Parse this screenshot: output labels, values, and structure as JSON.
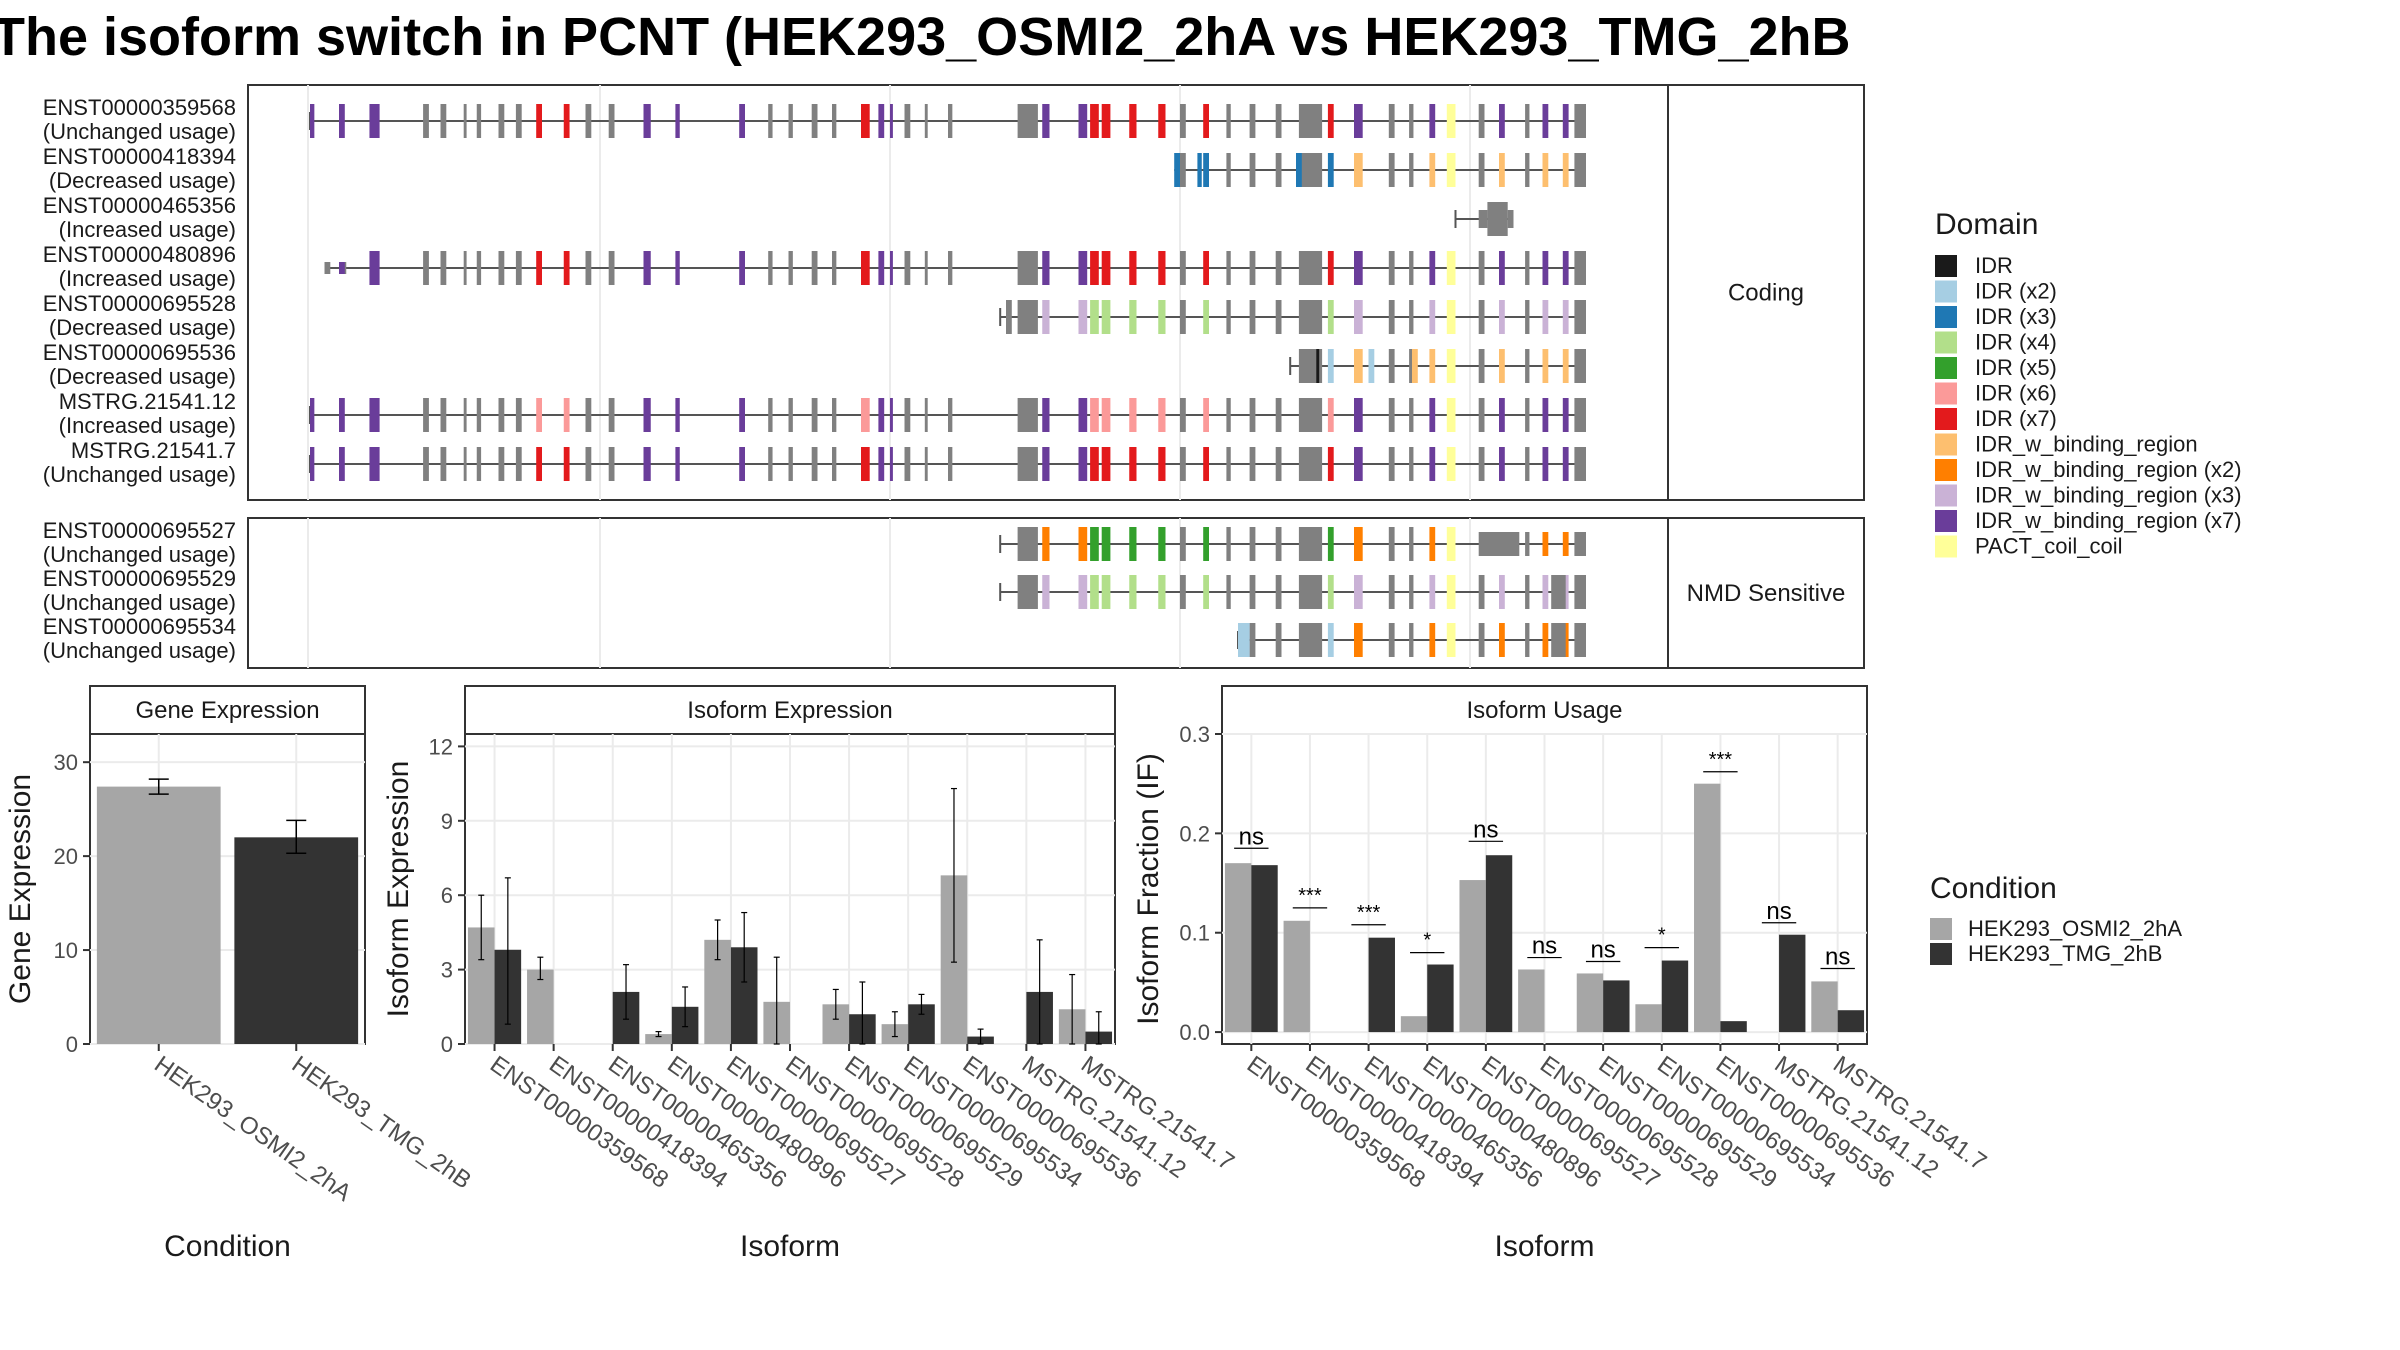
{
  "title": "The isoform switch in PCNT (HEK293_OSMI2_2hA vs HEK293_TMG_2hB",
  "colors": {
    "IDR": "#1a1a1a",
    "IDR (x2)": "#a6cee3",
    "IDR (x3)": "#1f78b4",
    "IDR (x4)": "#b2df8a",
    "IDR (x5)": "#33a02c",
    "IDR (x6)": "#fb9a99",
    "IDR (x7)": "#e31a1c",
    "IDR_w_binding_region": "#fdbf6f",
    "IDR_w_binding_region (x2)": "#ff7f00",
    "IDR_w_binding_region (x3)": "#cab2d6",
    "IDR_w_binding_region (x7)": "#6a3d9a",
    "PACT_coil_coil": "#ffff99",
    "exon": "#808080",
    "cond_A": "#a6a6a6",
    "cond_B": "#333333"
  },
  "structure": {
    "panels": [
      {
        "label": "Coding",
        "isoforms": [
          {
            "id": "ENST00000359568",
            "usage": "(Unchanged usage)"
          },
          {
            "id": "ENST00000418394",
            "usage": "(Decreased usage)"
          },
          {
            "id": "ENST00000465356",
            "usage": "(Increased usage)"
          },
          {
            "id": "ENST00000480896",
            "usage": "(Increased usage)"
          },
          {
            "id": "ENST00000695528",
            "usage": "(Decreased usage)"
          },
          {
            "id": "ENST00000695536",
            "usage": "(Decreased usage)"
          },
          {
            "id": "MSTRG.21541.12",
            "usage": "(Increased usage)"
          },
          {
            "id": "MSTRG.21541.7",
            "usage": "(Unchanged usage)"
          }
        ]
      },
      {
        "label": "NMD Sensitive",
        "isoforms": [
          {
            "id": "ENST00000695527",
            "usage": "(Unchanged usage)"
          },
          {
            "id": "ENST00000695529",
            "usage": "(Unchanged usage)"
          },
          {
            "id": "ENST00000695534",
            "usage": "(Unchanged usage)"
          }
        ]
      }
    ]
  },
  "legend_domain": {
    "title": "Domain",
    "items": [
      "IDR",
      "IDR (x2)",
      "IDR (x3)",
      "IDR (x4)",
      "IDR (x5)",
      "IDR (x6)",
      "IDR (x7)",
      "IDR_w_binding_region",
      "IDR_w_binding_region (x2)",
      "IDR_w_binding_region (x3)",
      "IDR_w_binding_region (x7)",
      "PACT_coil_coil"
    ]
  },
  "legend_condition": {
    "title": "Condition",
    "items": [
      "HEK293_OSMI2_2hA",
      "HEK293_TMG_2hB"
    ]
  },
  "chart_data": [
    {
      "type": "bar",
      "title": "Gene Expression",
      "xlabel": "Condition",
      "ylabel": "Gene Expression",
      "ylim": [
        0,
        33
      ],
      "yticks": [
        "0",
        "10",
        "20",
        "30"
      ],
      "categories": [
        "HEK293_OSMI2_2hA",
        "HEK293_TMG_2hB"
      ],
      "values": [
        27.4,
        22.0
      ],
      "error_low": [
        26.6,
        20.3
      ],
      "error_high": [
        28.2,
        23.8
      ]
    },
    {
      "type": "bar",
      "title": "Isoform Expression",
      "xlabel": "Isoform",
      "ylabel": "Isoform Expression",
      "ylim": [
        0,
        12.5
      ],
      "yticks": [
        "0",
        "3",
        "6",
        "9",
        "12"
      ],
      "categories": [
        "ENST00000359568",
        "ENST00000418394",
        "ENST00000465356",
        "ENST00000480896",
        "ENST00000695527",
        "ENST00000695528",
        "ENST00000695529",
        "ENST00000695534",
        "ENST00000695536",
        "MSTRG.21541.12",
        "MSTRG.21541.7"
      ],
      "series": [
        {
          "name": "HEK293_OSMI2_2hA",
          "values": [
            4.7,
            3.0,
            0.0,
            0.4,
            4.2,
            1.7,
            1.6,
            0.8,
            6.8,
            0.0,
            1.4
          ],
          "error_low": [
            3.4,
            2.6,
            0.0,
            0.3,
            3.4,
            0.0,
            1.0,
            0.3,
            3.3,
            0.0,
            0.0
          ],
          "error_high": [
            6.0,
            3.5,
            0.0,
            0.5,
            5.0,
            3.5,
            2.2,
            1.3,
            10.3,
            0.0,
            2.8
          ]
        },
        {
          "name": "HEK293_TMG_2hB",
          "values": [
            3.8,
            0.0,
            2.1,
            1.5,
            3.9,
            0.0,
            1.2,
            1.6,
            0.3,
            2.1,
            0.5
          ],
          "error_low": [
            0.8,
            0.0,
            1.0,
            0.7,
            2.5,
            0.0,
            0.0,
            1.2,
            0.0,
            0.0,
            0.0
          ],
          "error_high": [
            6.7,
            0.0,
            3.2,
            2.3,
            5.3,
            0.0,
            2.5,
            2.0,
            0.6,
            4.2,
            1.3
          ]
        }
      ]
    },
    {
      "type": "bar",
      "title": "Isoform Usage",
      "xlabel": "Isoform",
      "ylabel": "Isoform Fraction (IF)",
      "ylim": [
        -0.012,
        0.3
      ],
      "yticks": [
        "0.0",
        "0.1",
        "0.2",
        "0.3"
      ],
      "categories": [
        "ENST00000359568",
        "ENST00000418394",
        "ENST00000465356",
        "ENST00000480896",
        "ENST00000695527",
        "ENST00000695528",
        "ENST00000695529",
        "ENST00000695534",
        "ENST00000695536",
        "MSTRG.21541.12",
        "MSTRG.21541.7"
      ],
      "series": [
        {
          "name": "HEK293_OSMI2_2hA",
          "values": [
            0.17,
            0.112,
            0.0,
            0.016,
            0.153,
            0.063,
            0.059,
            0.028,
            0.25,
            0.0,
            0.051
          ]
        },
        {
          "name": "HEK293_TMG_2hB",
          "values": [
            0.168,
            0.0,
            0.095,
            0.068,
            0.178,
            0.0,
            0.052,
            0.072,
            0.011,
            0.098,
            0.022
          ]
        }
      ],
      "significance": [
        "ns",
        "***",
        "***",
        "*",
        "ns",
        "ns",
        "ns",
        "*",
        "***",
        "ns",
        "ns"
      ],
      "significance_y": [
        0.185,
        0.125,
        0.108,
        0.08,
        0.192,
        0.075,
        0.071,
        0.085,
        0.262,
        0.11,
        0.064
      ]
    }
  ]
}
